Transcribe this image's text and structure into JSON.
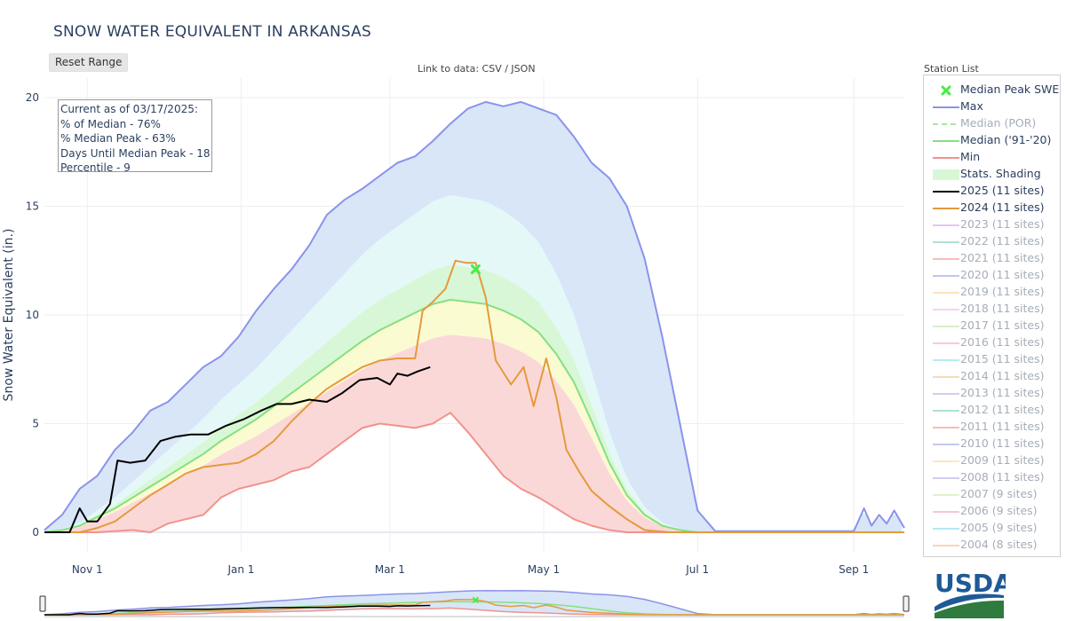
{
  "page": {
    "title": "SNOW WATER EQUIVALENT IN ARKANSAS",
    "reset_label": "Reset Range",
    "data_link": "Link to data: CSV / JSON",
    "station_list": "Station List",
    "logo_text": "USDA"
  },
  "info_box": {
    "lines": [
      "Current as of 03/17/2025:",
      "% of Median - 76%",
      "% Median Peak - 63%",
      "Days Until Median Peak - 18",
      "Percentile - 9"
    ]
  },
  "colors": {
    "max": "#8b93ea",
    "median": "#86e07f",
    "min": "#f0938c",
    "wy2025": "#000000",
    "wy2024": "#e59a3c",
    "shade_blue": "#d8e6f8",
    "shade_cyan": "#e4f8f8",
    "shade_green": "#d8f7d6",
    "shade_yellow": "#fbfbd2",
    "shade_red": "#fbd8d8",
    "peak_marker": "#44ee44"
  },
  "legend": [
    {
      "label": "Median Peak SWE",
      "kind": "marker",
      "color": "#44ee44",
      "active": true
    },
    {
      "label": "Max",
      "kind": "line",
      "color": "#8b93ea",
      "active": true
    },
    {
      "label": "Median (POR)",
      "kind": "dash",
      "color": "#a8e6a0",
      "active": false
    },
    {
      "label": "Median ('91-'20)",
      "kind": "line",
      "color": "#86e07f",
      "active": true
    },
    {
      "label": "Min",
      "kind": "line",
      "color": "#f0938c",
      "active": true
    },
    {
      "label": "Stats. Shading",
      "kind": "shade",
      "color": "#d8f7d6",
      "active": true
    },
    {
      "label": "2025 (11 sites)",
      "kind": "line",
      "color": "#000000",
      "active": true
    },
    {
      "label": "2024 (11 sites)",
      "kind": "line",
      "color": "#e59a3c",
      "active": true
    },
    {
      "label": "2023 (11 sites)",
      "kind": "line",
      "color": "#d9b3f0",
      "active": false
    },
    {
      "label": "2022 (11 sites)",
      "kind": "line",
      "color": "#8fdcc9",
      "active": false
    },
    {
      "label": "2021 (11 sites)",
      "kind": "line",
      "color": "#f5a5a0",
      "active": false
    },
    {
      "label": "2020 (11 sites)",
      "kind": "line",
      "color": "#a9b3ee",
      "active": false
    },
    {
      "label": "2019 (11 sites)",
      "kind": "line",
      "color": "#fbd9a8",
      "active": false
    },
    {
      "label": "2018 (11 sites)",
      "kind": "line",
      "color": "#f4c3ef",
      "active": false
    },
    {
      "label": "2017 (11 sites)",
      "kind": "line",
      "color": "#c9eab8",
      "active": false
    },
    {
      "label": "2016 (11 sites)",
      "kind": "line",
      "color": "#f6b8cd",
      "active": false
    },
    {
      "label": "2015 (11 sites)",
      "kind": "line",
      "color": "#9de6ef",
      "active": false
    },
    {
      "label": "2014 (11 sites)",
      "kind": "line",
      "color": "#f4d0a2",
      "active": false
    },
    {
      "label": "2013 (11 sites)",
      "kind": "line",
      "color": "#d2b7ea",
      "active": false
    },
    {
      "label": "2012 (11 sites)",
      "kind": "line",
      "color": "#8fd8c4",
      "active": false
    },
    {
      "label": "2011 (11 sites)",
      "kind": "line",
      "color": "#f6a6a0",
      "active": false
    },
    {
      "label": "2010 (11 sites)",
      "kind": "line",
      "color": "#b2b8ea",
      "active": false
    },
    {
      "label": "2009 (11 sites)",
      "kind": "line",
      "color": "#fbe0a8",
      "active": false
    },
    {
      "label": "2008 (11 sites)",
      "kind": "line",
      "color": "#c9b8ef",
      "active": false
    },
    {
      "label": "2007 (9 sites)",
      "kind": "line",
      "color": "#d5efb8",
      "active": false
    },
    {
      "label": "2006 (9 sites)",
      "kind": "line",
      "color": "#f6b3c6",
      "active": false
    },
    {
      "label": "2005 (9 sites)",
      "kind": "line",
      "color": "#98e3ee",
      "active": false
    },
    {
      "label": "2004 (8 sites)",
      "kind": "line",
      "color": "#f6c99a",
      "active": false
    }
  ],
  "chart_data": {
    "type": "area",
    "title": "SNOW WATER EQUIVALENT IN ARKANSAS",
    "ylabel": "Snow Water Equivalent (in.)",
    "xlabel": "",
    "ylim": [
      -0.9,
      20.9
    ],
    "xlim": [
      "10/15",
      "9/21"
    ],
    "grid": true,
    "legend_position": "right",
    "yticks": [
      0,
      5,
      10,
      15,
      20
    ],
    "xticks": [
      {
        "label": "Nov 1",
        "date": "11/01"
      },
      {
        "label": "Jan 1",
        "date": "01/01"
      },
      {
        "label": "Mar 1",
        "date": "03/01"
      },
      {
        "label": "May 1",
        "date": "05/01"
      },
      {
        "label": "Jul 1",
        "date": "07/01"
      },
      {
        "label": "Sep 1",
        "date": "09/01"
      }
    ],
    "series": [
      {
        "name": "Max",
        "x": [
          "10/15",
          "10/22",
          "10/29",
          "11/05",
          "11/12",
          "11/19",
          "11/26",
          "12/03",
          "12/10",
          "12/17",
          "12/24",
          "12/31",
          "01/07",
          "01/14",
          "01/21",
          "01/28",
          "02/04",
          "02/11",
          "02/18",
          "02/25",
          "03/04",
          "03/11",
          "03/18",
          "03/25",
          "04/01",
          "04/08",
          "04/15",
          "04/22",
          "04/29",
          "05/06",
          "05/13",
          "05/20",
          "05/27",
          "06/03",
          "06/10",
          "06/17",
          "06/24",
          "07/01",
          "07/08",
          "09/01",
          "09/05",
          "09/08",
          "09/11",
          "09/14",
          "09/17",
          "09/21"
        ],
        "y": [
          0.1,
          0.8,
          2.0,
          2.6,
          3.8,
          4.6,
          5.6,
          6.0,
          6.8,
          7.6,
          8.1,
          9.0,
          10.2,
          11.2,
          12.1,
          13.2,
          14.6,
          15.3,
          15.8,
          16.4,
          17.0,
          17.3,
          18.0,
          18.8,
          19.5,
          19.8,
          19.6,
          19.8,
          19.5,
          19.2,
          18.2,
          17.0,
          16.3,
          15.0,
          12.6,
          9.0,
          5.0,
          1.0,
          0.05,
          0.05,
          1.1,
          0.3,
          0.8,
          0.4,
          1.0,
          0.2
        ]
      },
      {
        "name": "Median ('91-'20)",
        "x": [
          "10/15",
          "10/22",
          "10/29",
          "11/05",
          "11/12",
          "11/19",
          "11/26",
          "12/03",
          "12/10",
          "12/17",
          "12/24",
          "12/31",
          "01/07",
          "01/14",
          "01/21",
          "01/28",
          "02/04",
          "02/11",
          "02/18",
          "02/25",
          "03/04",
          "03/11",
          "03/18",
          "03/25",
          "04/01",
          "04/08",
          "04/15",
          "04/22",
          "04/29",
          "05/06",
          "05/13",
          "05/20",
          "05/27",
          "06/03",
          "06/10",
          "06/17",
          "06/24",
          "07/01",
          "09/21"
        ],
        "y": [
          0.0,
          0.1,
          0.3,
          0.7,
          1.1,
          1.6,
          2.1,
          2.6,
          3.1,
          3.6,
          4.2,
          4.7,
          5.2,
          5.8,
          6.4,
          7.0,
          7.6,
          8.2,
          8.8,
          9.3,
          9.7,
          10.1,
          10.5,
          10.7,
          10.6,
          10.5,
          10.2,
          9.8,
          9.2,
          8.2,
          6.9,
          5.1,
          3.2,
          1.7,
          0.8,
          0.3,
          0.1,
          0.0,
          0.0
        ]
      },
      {
        "name": "Min",
        "x": [
          "10/15",
          "10/22",
          "10/29",
          "11/05",
          "11/12",
          "11/19",
          "11/26",
          "12/03",
          "12/10",
          "12/17",
          "12/24",
          "12/31",
          "01/07",
          "01/14",
          "01/21",
          "01/28",
          "02/04",
          "02/11",
          "02/18",
          "02/25",
          "03/04",
          "03/11",
          "03/18",
          "03/25",
          "04/01",
          "04/08",
          "04/15",
          "04/22",
          "04/29",
          "05/06",
          "05/13",
          "05/20",
          "05/27",
          "06/03",
          "06/10",
          "06/17",
          "07/01",
          "09/21"
        ],
        "y": [
          0.0,
          0.0,
          0.0,
          0.0,
          0.05,
          0.1,
          0.0,
          0.4,
          0.6,
          0.8,
          1.6,
          2.0,
          2.2,
          2.4,
          2.8,
          3.0,
          3.6,
          4.2,
          4.8,
          5.0,
          4.9,
          4.8,
          5.0,
          5.5,
          4.6,
          3.6,
          2.6,
          2.0,
          1.6,
          1.1,
          0.6,
          0.3,
          0.1,
          0.0,
          0.0,
          0.0,
          0.0,
          0.0
        ]
      },
      {
        "name": "2025 (11 sites)",
        "x": [
          "10/15",
          "10/20",
          "10/25",
          "10/29",
          "11/01",
          "11/05",
          "11/10",
          "11/13",
          "11/18",
          "11/24",
          "11/30",
          "12/06",
          "12/12",
          "12/19",
          "12/26",
          "01/02",
          "01/09",
          "01/15",
          "01/21",
          "01/28",
          "02/04",
          "02/10",
          "02/17",
          "02/24",
          "03/01",
          "03/04",
          "03/08",
          "03/12",
          "03/17"
        ],
        "y": [
          0.0,
          0.0,
          0.0,
          1.1,
          0.5,
          0.5,
          1.3,
          3.3,
          3.2,
          3.3,
          4.2,
          4.4,
          4.5,
          4.5,
          4.9,
          5.2,
          5.6,
          5.9,
          5.9,
          6.1,
          6.0,
          6.4,
          7.0,
          7.1,
          6.8,
          7.3,
          7.2,
          7.4,
          7.6
        ]
      },
      {
        "name": "2024 (11 sites)",
        "x": [
          "10/15",
          "10/29",
          "11/05",
          "11/12",
          "11/19",
          "11/26",
          "12/03",
          "12/10",
          "12/17",
          "12/24",
          "12/31",
          "01/07",
          "01/14",
          "01/21",
          "01/28",
          "02/04",
          "02/11",
          "02/18",
          "02/25",
          "03/04",
          "03/11",
          "03/14",
          "03/18",
          "03/23",
          "03/27",
          "03/31",
          "04/04",
          "04/08",
          "04/12",
          "04/18",
          "04/23",
          "04/27",
          "05/02",
          "05/06",
          "05/10",
          "05/15",
          "05/20",
          "05/27",
          "06/03",
          "06/10",
          "06/20",
          "07/01",
          "09/21"
        ],
        "y": [
          0.0,
          0.0,
          0.2,
          0.5,
          1.1,
          1.7,
          2.2,
          2.7,
          3.0,
          3.1,
          3.2,
          3.6,
          4.2,
          5.1,
          5.9,
          6.6,
          7.1,
          7.6,
          7.9,
          8.0,
          8.0,
          10.2,
          10.6,
          11.2,
          12.5,
          12.4,
          12.4,
          10.8,
          7.9,
          6.8,
          7.6,
          5.8,
          8.0,
          6.2,
          3.8,
          2.8,
          1.9,
          1.2,
          0.6,
          0.1,
          0.0,
          0.0,
          0.0
        ]
      }
    ],
    "shading": [
      {
        "name": "Max to 90th percentile",
        "color": "#d8e6f8"
      },
      {
        "name": "90th to 70th percentile",
        "color": "#e4f8f8"
      },
      {
        "name": "70th to 50th percentile",
        "color": "#d8f7d6"
      },
      {
        "name": "50th to 30th percentile",
        "color": "#fbfbd2"
      },
      {
        "name": "30th percentile to Min",
        "color": "#fbd8d8"
      }
    ],
    "markers": [
      {
        "name": "Median Peak SWE",
        "x": "04/04",
        "y": 12.1
      }
    ]
  }
}
